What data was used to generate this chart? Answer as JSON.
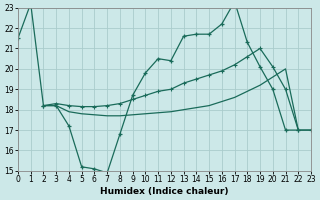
{
  "bg_color": "#cce8e8",
  "grid_color": "#aacccc",
  "line_color": "#1a6b5a",
  "xlim": [
    0,
    23
  ],
  "ylim": [
    15,
    23
  ],
  "xticks": [
    0,
    1,
    2,
    3,
    4,
    5,
    6,
    7,
    8,
    9,
    10,
    11,
    12,
    13,
    14,
    15,
    16,
    17,
    18,
    19,
    20,
    21,
    22,
    23
  ],
  "yticks": [
    15,
    16,
    17,
    18,
    19,
    20,
    21,
    22,
    23
  ],
  "xlabel": "Humidex (Indice chaleur)",
  "line1_x": [
    0,
    1,
    2,
    3,
    4,
    5,
    6,
    7,
    8,
    9,
    10,
    11,
    12,
    13,
    14,
    15,
    16,
    17,
    18,
    19,
    20,
    21,
    22
  ],
  "line1_y": [
    21.5,
    23.2,
    18.2,
    18.2,
    17.2,
    15.2,
    15.1,
    14.9,
    16.8,
    18.7,
    19.8,
    20.5,
    20.4,
    21.6,
    21.7,
    21.7,
    22.2,
    23.3,
    21.3,
    20.1,
    19.0,
    17.0,
    17.0
  ],
  "line2_x": [
    2,
    3,
    4,
    5,
    6,
    7,
    8,
    9,
    10,
    11,
    12,
    13,
    14,
    15,
    16,
    17,
    18,
    19,
    20,
    21,
    22,
    23
  ],
  "line2_y": [
    18.2,
    18.3,
    18.2,
    18.15,
    18.15,
    18.2,
    18.3,
    18.5,
    18.7,
    18.9,
    19.0,
    19.3,
    19.5,
    19.7,
    19.9,
    20.2,
    20.6,
    21.0,
    20.1,
    19.0,
    17.0,
    17.0
  ],
  "line3_x": [
    2,
    3,
    4,
    5,
    6,
    7,
    8,
    9,
    10,
    11,
    12,
    13,
    14,
    15,
    16,
    17,
    18,
    19,
    20,
    21,
    22,
    23
  ],
  "line3_y": [
    18.2,
    18.2,
    17.9,
    17.8,
    17.75,
    17.7,
    17.7,
    17.75,
    17.8,
    17.85,
    17.9,
    18.0,
    18.1,
    18.2,
    18.4,
    18.6,
    18.9,
    19.2,
    19.6,
    20.0,
    17.0,
    17.0
  ]
}
